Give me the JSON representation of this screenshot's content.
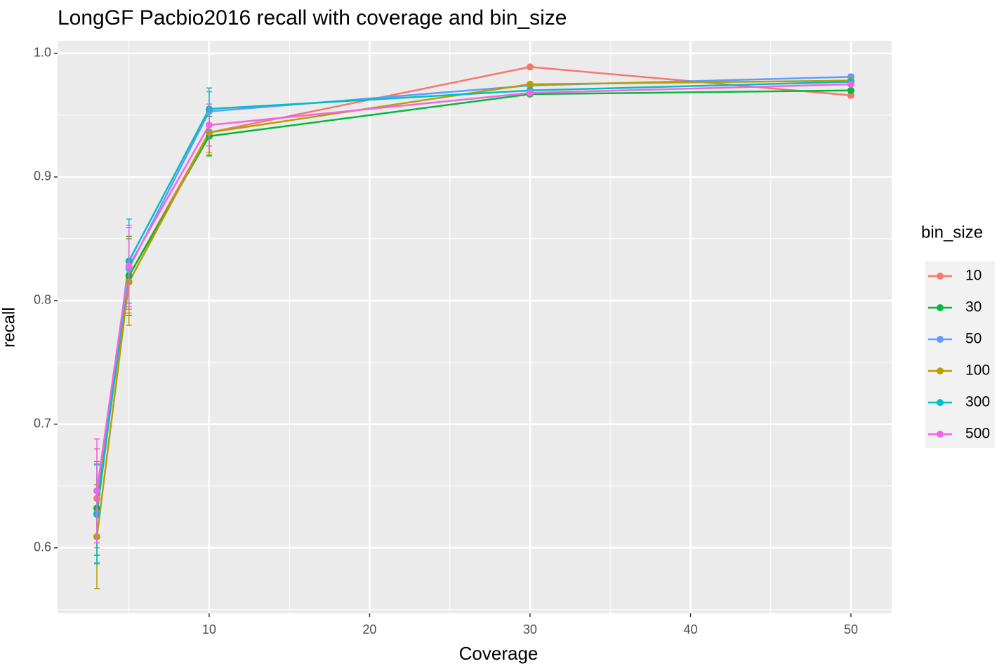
{
  "chart_data": {
    "type": "line",
    "title": "LongGF Pacbio2016 recall with coverage and bin_size",
    "x_label": "Coverage",
    "y_label": "recall",
    "legend_title": "bin_size",
    "legend_position": "right",
    "grid": true,
    "x": [
      3,
      5,
      10,
      30,
      50
    ],
    "xlim": [
      0.55,
      52.54
    ],
    "xticks": [
      10,
      20,
      30,
      40,
      50
    ],
    "ylim": [
      0.547,
      1.0102
    ],
    "yticks": [
      {
        "value": 0.6,
        "label": "0.6"
      },
      {
        "value": 0.7,
        "label": "0.7"
      },
      {
        "value": 0.8,
        "label": "0.8"
      },
      {
        "value": 0.9,
        "label": "0.9"
      },
      {
        "value": 1.0,
        "label": "1.0"
      }
    ],
    "series": [
      {
        "name": "10",
        "color": "#F8766D",
        "values": [
          0.64,
          0.82,
          0.936,
          0.989,
          0.966
        ],
        "errors": [
          0.04,
          0.03,
          0.016,
          0.001,
          0.002
        ]
      },
      {
        "name": "30",
        "color": "#00BA38",
        "values": [
          0.632,
          0.82,
          0.933,
          0.967,
          0.97
        ],
        "errors": [
          0.038,
          0.032,
          0.016,
          0.001,
          0.001
        ]
      },
      {
        "name": "50",
        "color": "#619CFF",
        "values": [
          0.628,
          0.826,
          0.953,
          0.974,
          0.981
        ],
        "errors": [
          0.04,
          0.033,
          0.016,
          0.001,
          0.002
        ]
      },
      {
        "name": "100",
        "color": "#B79F00",
        "values": [
          0.609,
          0.815,
          0.936,
          0.975,
          0.978
        ],
        "errors": [
          0.042,
          0.035,
          0.018,
          0.001,
          0.001
        ]
      },
      {
        "name": "300",
        "color": "#00BFC4",
        "values": [
          0.627,
          0.832,
          0.955,
          0.97,
          0.977
        ],
        "errors": [
          0.04,
          0.034,
          0.017,
          0.001,
          0.001
        ]
      },
      {
        "name": "500",
        "color": "#F564E3",
        "values": [
          0.646,
          0.828,
          0.942,
          0.968,
          0.975
        ],
        "errors": [
          0.042,
          0.033,
          0.017,
          0.001,
          0.001
        ]
      }
    ]
  }
}
